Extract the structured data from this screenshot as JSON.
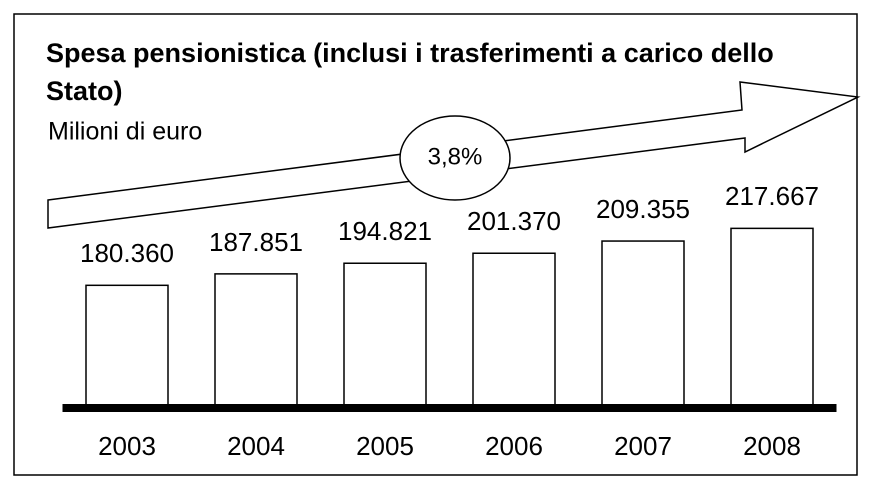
{
  "chart_data": {
    "type": "bar",
    "title": "Spesa pensionistica (inclusi i trasferimenti a carico dello Stato)",
    "subtitle": "Milioni di euro",
    "annotation": "3,8%",
    "categories": [
      "2003",
      "2004",
      "2005",
      "2006",
      "2007",
      "2008"
    ],
    "values": [
      180360,
      187851,
      194821,
      201370,
      209355,
      217667
    ],
    "value_labels": [
      "180.360",
      "187.851",
      "194.821",
      "201.370",
      "209.355",
      "217.667"
    ],
    "color": "#ffffff",
    "ylim": [
      100000,
      250000
    ]
  }
}
